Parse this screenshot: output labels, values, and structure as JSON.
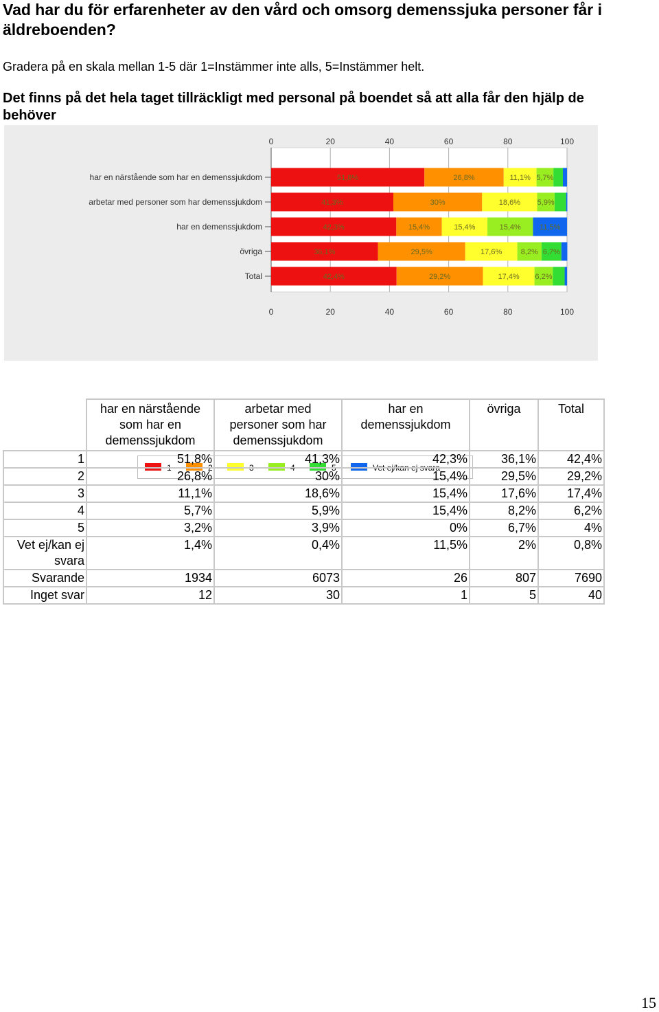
{
  "page": {
    "heading": "Vad har du för erfarenheter av den vård och omsorg demenssjuka personer får i äldreboenden?",
    "instruction": "Gradera på en skala mellan 1-5 där 1=Instämmer inte alls, 5=Instämmer helt.",
    "question": "Det finns på det hela taget tillräckligt med personal på boendet så att alla får den hjälp de behöver",
    "page_number": "15"
  },
  "colors": {
    "1": "#ee1111",
    "2": "#ff9100",
    "3": "#ffff2e",
    "4": "#99ee22",
    "5": "#33dd33",
    "vet_ej": "#1166ee",
    "chart_bg": "#ececec",
    "plot_bg": "#ffffff",
    "grid": "#b0b0b0"
  },
  "chart_data": {
    "type": "bar",
    "orientation": "horizontal",
    "stacked": true,
    "categories": [
      "har en närstående som har en demenssjukdom",
      "arbetar med personer som har demenssjukdom",
      "har en demenssjukdom",
      "övriga",
      "Total"
    ],
    "series": [
      {
        "name": "1",
        "values": [
          51.8,
          41.3,
          42.3,
          36.1,
          42.4
        ]
      },
      {
        "name": "2",
        "values": [
          26.8,
          30,
          15.4,
          29.5,
          29.2
        ]
      },
      {
        "name": "3",
        "values": [
          11.1,
          18.6,
          15.4,
          17.6,
          17.4
        ]
      },
      {
        "name": "4",
        "values": [
          5.7,
          5.9,
          15.4,
          8.2,
          6.2
        ]
      },
      {
        "name": "5",
        "values": [
          3.2,
          3.9,
          0,
          6.7,
          4
        ]
      },
      {
        "name": "Vet ej/kan ej svara",
        "values": [
          1.4,
          0.4,
          11.5,
          2,
          0.8
        ]
      }
    ],
    "data_labels": [
      [
        "51,8%",
        "26,8%",
        "11,1%",
        "5,7%",
        "",
        ""
      ],
      [
        "41,3%",
        "30%",
        "18,6%",
        "5,9%",
        "",
        ""
      ],
      [
        "42,3%",
        "15,4%",
        "15,4%",
        "15,4%",
        "",
        "11,5%"
      ],
      [
        "36,1%",
        "29,5%",
        "17,6%",
        "8,2%",
        "6,7%",
        ""
      ],
      [
        "42,4%",
        "29,2%",
        "17,4%",
        "6,2%",
        "",
        ""
      ]
    ],
    "xlim": [
      0,
      100
    ],
    "ticks": [
      "0",
      "20",
      "40",
      "60",
      "80",
      "100"
    ],
    "tick_values": [
      0,
      20,
      40,
      60,
      80,
      100
    ],
    "legend_position": "bottom"
  },
  "table": {
    "columns": [
      "har en närstående som har en demenssjukdom",
      "arbetar med personer som har demenssjukdom",
      "har en demenssjukdom",
      "övriga",
      "Total"
    ],
    "rows": [
      {
        "label": "1",
        "values": [
          "51,8%",
          "41,3%",
          "42,3%",
          "36,1%",
          "42,4%"
        ]
      },
      {
        "label": "2",
        "values": [
          "26,8%",
          "30%",
          "15,4%",
          "29,5%",
          "29,2%"
        ]
      },
      {
        "label": "3",
        "values": [
          "11,1%",
          "18,6%",
          "15,4%",
          "17,6%",
          "17,4%"
        ]
      },
      {
        "label": "4",
        "values": [
          "5,7%",
          "5,9%",
          "15,4%",
          "8,2%",
          "6,2%"
        ]
      },
      {
        "label": "5",
        "values": [
          "3,2%",
          "3,9%",
          "0%",
          "6,7%",
          "4%"
        ]
      },
      {
        "label": "Vet ej/kan ej svara",
        "values": [
          "1,4%",
          "0,4%",
          "11,5%",
          "2%",
          "0,8%"
        ]
      },
      {
        "label": "Svarande",
        "values": [
          "1934",
          "6073",
          "26",
          "807",
          "7690"
        ]
      },
      {
        "label": "Inget svar",
        "values": [
          "12",
          "30",
          "1",
          "5",
          "40"
        ]
      }
    ]
  }
}
